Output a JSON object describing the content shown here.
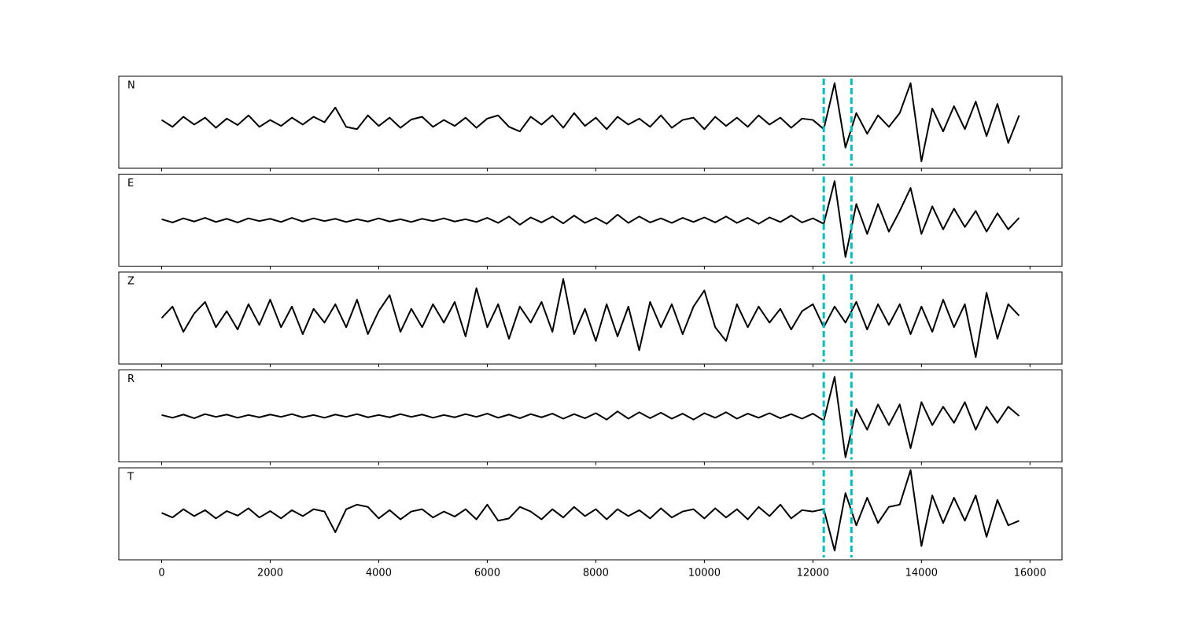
{
  "chart_data": {
    "type": "line",
    "color": "#000000",
    "x": [
      0,
      200,
      400,
      600,
      800,
      1000,
      1200,
      1400,
      1600,
      1800,
      2000,
      2200,
      2400,
      2600,
      2800,
      3000,
      3200,
      3400,
      3600,
      3800,
      4000,
      4200,
      4400,
      4600,
      4800,
      5000,
      5200,
      5400,
      5600,
      5800,
      6000,
      6200,
      6400,
      6600,
      6800,
      7000,
      7200,
      7400,
      7600,
      7800,
      8000,
      8200,
      8400,
      8600,
      8800,
      9000,
      9200,
      9400,
      9600,
      9800,
      10000,
      10200,
      10400,
      10600,
      10800,
      11000,
      11200,
      11400,
      11600,
      11800,
      12000,
      12200,
      12400,
      12600,
      12800,
      13000,
      13200,
      13400,
      13600,
      13800,
      14000,
      14200,
      14400,
      14600,
      14800,
      15000,
      15200,
      15400,
      15600,
      15800
    ],
    "xlim": [
      -790,
      16590
    ],
    "xticks": [
      0,
      2000,
      4000,
      6000,
      8000,
      10000,
      12000,
      14000,
      16000
    ],
    "ylim": [
      -1,
      1
    ],
    "vlines": [
      12200,
      12710
    ],
    "vline_color": "#00bfbf",
    "panels": [
      {
        "label": "N",
        "values": [
          0.05,
          -0.1,
          0.12,
          -0.05,
          0.1,
          -0.12,
          0.08,
          -0.06,
          0.15,
          -0.1,
          0.05,
          -0.08,
          0.1,
          -0.05,
          0.12,
          0.0,
          0.32,
          -0.1,
          -0.15,
          0.15,
          -0.08,
          0.1,
          -0.12,
          0.06,
          0.12,
          -0.1,
          0.05,
          -0.08,
          0.1,
          -0.12,
          0.08,
          0.15,
          -0.1,
          -0.2,
          0.12,
          -0.05,
          0.15,
          -0.12,
          0.2,
          -0.08,
          0.1,
          -0.15,
          0.12,
          -0.05,
          0.08,
          -0.1,
          0.15,
          -0.12,
          0.05,
          0.1,
          -0.15,
          0.12,
          -0.08,
          0.1,
          -0.1,
          0.15,
          -0.05,
          0.1,
          -0.12,
          0.08,
          0.05,
          -0.15,
          0.85,
          -0.55,
          0.2,
          -0.25,
          0.15,
          -0.1,
          0.2,
          0.85,
          -0.85,
          0.3,
          -0.2,
          0.35,
          -0.15,
          0.45,
          -0.3,
          0.4,
          -0.45,
          0.15
        ]
      },
      {
        "label": "E",
        "values": [
          0.02,
          -0.05,
          0.04,
          -0.03,
          0.05,
          -0.04,
          0.03,
          -0.05,
          0.04,
          -0.02,
          0.03,
          -0.04,
          0.05,
          -0.03,
          0.04,
          -0.02,
          0.03,
          -0.04,
          0.02,
          -0.03,
          0.04,
          -0.03,
          0.02,
          -0.04,
          0.03,
          -0.02,
          0.04,
          -0.03,
          0.02,
          -0.04,
          0.05,
          -0.06,
          0.08,
          -0.1,
          0.06,
          -0.05,
          0.08,
          -0.07,
          0.1,
          -0.06,
          0.05,
          -0.08,
          0.12,
          -0.06,
          0.08,
          -0.05,
          0.04,
          -0.06,
          0.05,
          -0.04,
          0.06,
          -0.05,
          0.08,
          -0.06,
          0.05,
          -0.08,
          0.06,
          -0.04,
          0.1,
          -0.05,
          0.04,
          -0.08,
          0.85,
          -0.8,
          0.35,
          -0.3,
          0.35,
          -0.25,
          0.2,
          0.7,
          -0.3,
          0.3,
          -0.2,
          0.25,
          -0.15,
          0.2,
          -0.25,
          0.15,
          -0.2,
          0.05
        ]
      },
      {
        "label": "Z",
        "values": [
          0.0,
          0.25,
          -0.3,
          0.1,
          0.35,
          -0.2,
          0.15,
          -0.25,
          0.3,
          -0.15,
          0.4,
          -0.2,
          0.25,
          -0.35,
          0.2,
          -0.1,
          0.3,
          -0.2,
          0.4,
          -0.35,
          0.15,
          0.5,
          -0.3,
          0.2,
          -0.2,
          0.3,
          -0.1,
          0.35,
          -0.4,
          0.65,
          -0.2,
          0.3,
          -0.45,
          0.25,
          -0.1,
          0.35,
          -0.3,
          0.85,
          -0.35,
          0.2,
          -0.5,
          0.3,
          -0.4,
          0.25,
          -0.7,
          0.35,
          -0.2,
          0.3,
          -0.35,
          0.25,
          0.6,
          -0.2,
          -0.5,
          0.3,
          -0.2,
          0.25,
          -0.1,
          0.2,
          -0.25,
          0.15,
          0.3,
          -0.2,
          0.25,
          -0.1,
          0.35,
          -0.25,
          0.3,
          -0.15,
          0.3,
          -0.35,
          0.25,
          -0.3,
          0.4,
          -0.2,
          0.3,
          -0.85,
          0.55,
          -0.45,
          0.3,
          0.05
        ]
      },
      {
        "label": "R",
        "values": [
          0.02,
          -0.04,
          0.03,
          -0.05,
          0.04,
          -0.02,
          0.03,
          -0.04,
          0.02,
          -0.03,
          0.03,
          -0.02,
          0.04,
          -0.03,
          0.02,
          -0.04,
          0.03,
          -0.02,
          0.04,
          -0.03,
          0.02,
          -0.03,
          0.04,
          -0.02,
          0.03,
          -0.04,
          0.02,
          -0.03,
          0.04,
          -0.02,
          0.05,
          -0.04,
          0.03,
          -0.05,
          0.04,
          -0.03,
          0.05,
          -0.06,
          0.04,
          -0.05,
          0.06,
          -0.08,
          0.1,
          -0.06,
          0.08,
          -0.05,
          0.07,
          -0.06,
          0.05,
          -0.08,
          0.06,
          -0.04,
          0.08,
          -0.06,
          0.05,
          -0.04,
          0.06,
          -0.05,
          0.04,
          -0.06,
          0.05,
          -0.1,
          0.85,
          -0.9,
          0.15,
          -0.3,
          0.25,
          -0.2,
          0.25,
          -0.7,
          0.3,
          -0.2,
          0.2,
          -0.15,
          0.3,
          -0.3,
          0.2,
          -0.15,
          0.2,
          0.0
        ]
      },
      {
        "label": "T",
        "values": [
          0.02,
          -0.08,
          0.1,
          -0.05,
          0.08,
          -0.1,
          0.06,
          -0.04,
          0.12,
          -0.08,
          0.06,
          -0.1,
          0.08,
          -0.05,
          0.1,
          0.05,
          -0.4,
          0.1,
          0.2,
          0.15,
          -0.1,
          0.08,
          -0.12,
          0.05,
          0.1,
          -0.08,
          0.05,
          -0.06,
          0.1,
          -0.12,
          0.2,
          -0.15,
          -0.1,
          0.15,
          0.05,
          -0.12,
          0.1,
          -0.08,
          0.15,
          -0.05,
          0.1,
          -0.12,
          0.1,
          -0.05,
          0.08,
          -0.1,
          0.12,
          -0.08,
          0.05,
          0.1,
          -0.1,
          0.12,
          -0.08,
          0.1,
          -0.12,
          0.15,
          -0.05,
          0.2,
          -0.1,
          0.08,
          0.05,
          0.1,
          -0.8,
          0.45,
          -0.25,
          0.35,
          -0.2,
          0.15,
          0.2,
          0.95,
          -0.7,
          0.4,
          -0.2,
          0.35,
          -0.15,
          0.4,
          -0.5,
          0.3,
          -0.25,
          -0.15
        ]
      }
    ]
  }
}
